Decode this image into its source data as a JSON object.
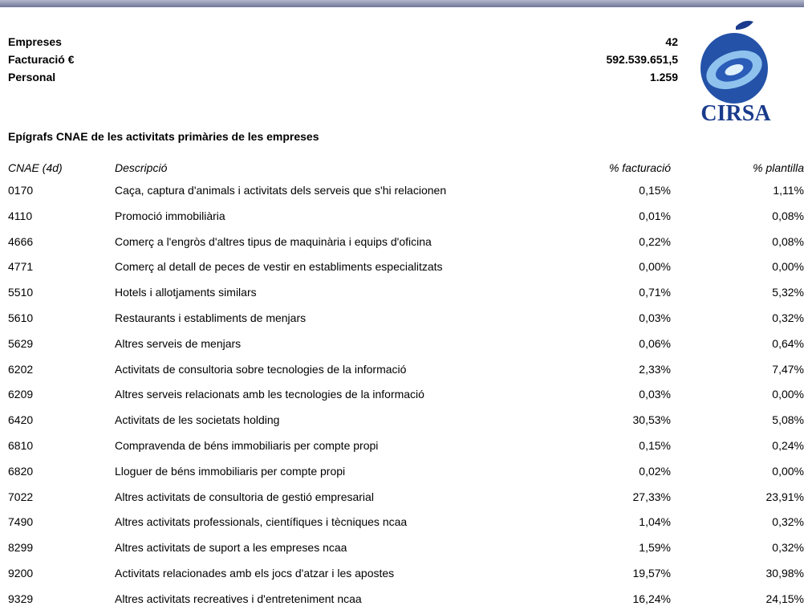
{
  "logo_text": "CIRSA",
  "summary": [
    {
      "label": "Empreses",
      "value": "42"
    },
    {
      "label": "Facturació €",
      "value": "592.539.651,5"
    },
    {
      "label": "Personal",
      "value": "1.259"
    }
  ],
  "section_title": "Epígrafs CNAE de les activitats primàries de les empreses",
  "table": {
    "headers": [
      "CNAE (4d)",
      "Descripció",
      "% facturació",
      "% plantilla"
    ],
    "rows": [
      [
        "0170",
        "Caça, captura d'animals i activitats dels serveis que s'hi relacionen",
        "0,15%",
        "1,11%"
      ],
      [
        "4110",
        "Promoció immobiliària",
        "0,01%",
        "0,08%"
      ],
      [
        "4666",
        "Comerç a l'engròs d'altres tipus de maquinària i equips d'oficina",
        "0,22%",
        "0,08%"
      ],
      [
        "4771",
        "Comerç al detall de peces de vestir en establiments especialitzats",
        "0,00%",
        "0,00%"
      ],
      [
        "5510",
        "Hotels i allotjaments similars",
        "0,71%",
        "5,32%"
      ],
      [
        "5610",
        "Restaurants i establiments de menjars",
        "0,03%",
        "0,32%"
      ],
      [
        "5629",
        "Altres serveis de menjars",
        "0,06%",
        "0,64%"
      ],
      [
        "6202",
        "Activitats de consultoria sobre tecnologies de la informació",
        "2,33%",
        "7,47%"
      ],
      [
        "6209",
        "Altres serveis relacionats amb les tecnologies de la informació",
        "0,03%",
        "0,00%"
      ],
      [
        "6420",
        "Activitats de les societats holding",
        "30,53%",
        "5,08%"
      ],
      [
        "6810",
        "Compravenda de béns immobiliaris per compte propi",
        "0,15%",
        "0,24%"
      ],
      [
        "6820",
        "Lloguer de béns immobiliaris per compte propi",
        "0,02%",
        "0,00%"
      ],
      [
        "7022",
        "Altres activitats de consultoria de gestió empresarial",
        "27,33%",
        "23,91%"
      ],
      [
        "7490",
        "Altres activitats professionals, científiques i tècniques ncaa",
        "1,04%",
        "0,32%"
      ],
      [
        "8299",
        "Altres activitats de suport a les empreses ncaa",
        "1,59%",
        "0,32%"
      ],
      [
        "9200",
        "Activitats relacionades amb els jocs d'atzar i les apostes",
        "19,57%",
        "30,98%"
      ],
      [
        "9329",
        "Altres activitats recreatives i d'entreteniment ncaa",
        "16,24%",
        "24,15%"
      ]
    ]
  }
}
